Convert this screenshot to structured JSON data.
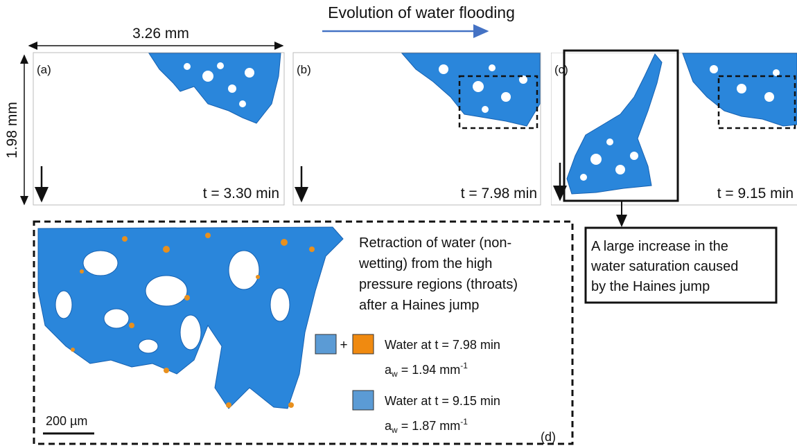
{
  "header": {
    "title": "Evolution of water flooding"
  },
  "dimensions": {
    "width": "3.26 mm",
    "height": "1.98 mm"
  },
  "panels": [
    {
      "label": "(a)",
      "time": "t = 3.30 min"
    },
    {
      "label": "(b)",
      "time": "t = 7.98 min"
    },
    {
      "label": "(c)",
      "time": "t = 9.15 min"
    }
  ],
  "annotation": {
    "lines": [
      "A large increase in the",
      "water saturation caused",
      "by the Haines jump"
    ]
  },
  "detail": {
    "label": "(d)",
    "description": [
      "Retraction of water (non-",
      "wetting) from the high",
      "pressure regions (throats)",
      "after a Haines jump"
    ],
    "plus": "+",
    "legend": [
      {
        "text": "Water at t = 7.98 min",
        "symbol": "a",
        "subscript": "w",
        "value": " = 1.94 mm",
        "superscript": "-1"
      },
      {
        "text": "Water at t = 9.15 min",
        "symbol": "a",
        "subscript": "w",
        "value": " = 1.87 mm",
        "superscript": "-1"
      }
    ],
    "scale_bar": "200 µm"
  }
}
